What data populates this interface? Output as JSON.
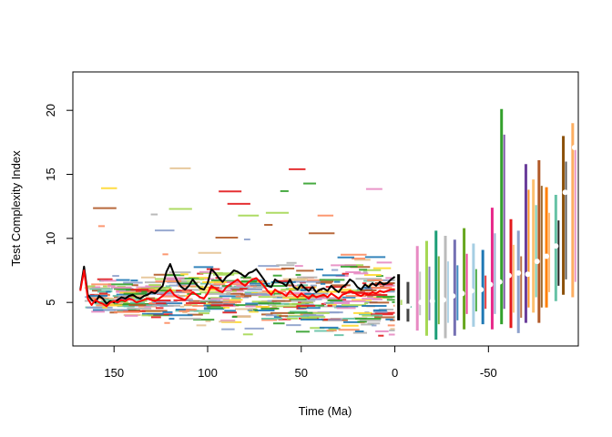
{
  "chart_data": {
    "type": "line",
    "title": "",
    "xlabel": "Time (Ma)",
    "ylabel": "Test Complexity Index",
    "xlim": [
      172,
      -98
    ],
    "ylim": [
      1.6,
      23
    ],
    "x_ticks": [
      150,
      100,
      50,
      0,
      -50
    ],
    "x_tick_labels": [
      "150",
      "100",
      "50",
      "0",
      "-50"
    ],
    "y_ticks": [
      5,
      10,
      15,
      20
    ],
    "y_tick_labels": [
      "5",
      "10",
      "15",
      "20"
    ],
    "grid": false,
    "legend": "none",
    "series": [
      {
        "style": "line",
        "color": "#000000",
        "x": [
          168,
          166,
          164,
          162,
          160,
          158,
          156,
          154,
          152,
          150,
          148,
          146,
          144,
          142,
          140,
          138,
          136,
          134,
          132,
          130,
          128,
          126,
          124,
          122,
          120,
          118,
          116,
          114,
          112,
          110,
          108,
          106,
          104,
          102,
          100,
          98,
          96,
          94,
          92,
          90,
          88,
          86,
          84,
          82,
          80,
          78,
          76,
          74,
          72,
          70,
          68,
          66,
          64,
          62,
          60,
          58,
          56,
          54,
          52,
          50,
          48,
          46,
          44,
          42,
          40,
          38,
          36,
          34,
          32,
          30,
          28,
          26,
          24,
          22,
          20,
          18,
          16,
          14,
          12,
          10,
          8,
          6,
          4,
          2,
          0
        ],
        "y": [
          6.0,
          7.8,
          5.6,
          5.2,
          5.0,
          5.5,
          5.3,
          4.9,
          5.1,
          5.0,
          5.2,
          5.4,
          5.3,
          5.5,
          5.6,
          5.4,
          5.3,
          5.5,
          5.6,
          5.8,
          5.7,
          6.0,
          6.3,
          7.4,
          8.0,
          7.2,
          6.6,
          6.2,
          6.0,
          6.3,
          6.8,
          6.4,
          6.1,
          6.0,
          6.5,
          7.6,
          7.3,
          6.9,
          6.6,
          7.0,
          7.2,
          7.5,
          7.4,
          7.2,
          7.0,
          7.3,
          7.4,
          7.6,
          7.2,
          6.8,
          6.3,
          6.2,
          6.8,
          6.6,
          6.5,
          6.3,
          6.8,
          6.2,
          6.0,
          6.4,
          6.1,
          5.9,
          6.2,
          5.8,
          6.0,
          6.1,
          5.9,
          6.3,
          6.0,
          5.8,
          6.2,
          6.4,
          6.8,
          6.6,
          6.2,
          6.0,
          6.4,
          6.2,
          6.5,
          6.3,
          6.6,
          6.4,
          6.5,
          6.8,
          7.0
        ]
      },
      {
        "style": "line",
        "color": "#ff0000",
        "x": [
          168,
          166,
          164,
          162,
          160,
          158,
          156,
          154,
          152,
          150,
          148,
          146,
          144,
          142,
          140,
          138,
          136,
          134,
          132,
          130,
          128,
          126,
          124,
          122,
          120,
          118,
          116,
          114,
          112,
          110,
          108,
          106,
          104,
          102,
          100,
          98,
          96,
          94,
          92,
          90,
          88,
          86,
          84,
          82,
          80,
          78,
          76,
          74,
          72,
          70,
          68,
          66,
          64,
          62,
          60,
          58,
          56,
          54,
          52,
          50,
          48,
          46,
          44,
          42,
          40,
          38,
          36,
          34,
          32,
          30,
          28,
          26,
          24,
          22,
          20,
          18,
          16,
          14,
          12,
          10,
          8,
          6,
          4,
          2,
          0
        ],
        "y": [
          5.9,
          7.5,
          5.3,
          4.8,
          5.2,
          5.0,
          4.9,
          4.7,
          5.0,
          5.1,
          5.0,
          5.2,
          5.1,
          5.3,
          5.2,
          5.0,
          5.1,
          5.2,
          5.3,
          5.2,
          5.1,
          5.3,
          5.5,
          5.8,
          6.0,
          5.6,
          5.4,
          5.3,
          5.2,
          5.5,
          5.8,
          5.6,
          5.4,
          5.3,
          5.7,
          6.3,
          6.1,
          5.9,
          5.8,
          6.2,
          6.4,
          6.6,
          6.8,
          6.5,
          6.3,
          6.6,
          6.8,
          6.9,
          6.6,
          6.3,
          5.9,
          5.6,
          6.0,
          5.8,
          5.7,
          5.5,
          5.9,
          5.6,
          5.4,
          5.7,
          5.5,
          5.3,
          5.6,
          5.4,
          5.5,
          5.6,
          5.4,
          5.7,
          5.5,
          5.3,
          5.6,
          5.7,
          5.9,
          5.8,
          5.6,
          5.5,
          5.7,
          5.6,
          5.8,
          5.7,
          5.9,
          5.8,
          5.9,
          6.0,
          6.0
        ]
      },
      {
        "style": "points",
        "color": "#ffffff",
        "x": [
          -7,
          -14,
          -20,
          -26,
          -31,
          -36,
          -41,
          -46,
          -51,
          -56,
          -61,
          -66,
          -71,
          -76,
          -81,
          -86,
          -91,
          -96
        ],
        "y": [
          4.7,
          5.0,
          5.1,
          5.2,
          5.5,
          5.7,
          5.9,
          6.0,
          6.4,
          6.6,
          7.1,
          7.3,
          7.2,
          8.2,
          8.6,
          9.4,
          13.6,
          17.1
        ]
      },
      {
        "style": "range-bars",
        "x": [
          -2,
          -7,
          -12,
          -17,
          -22,
          -27,
          -32,
          -37,
          -42,
          -47,
          -52,
          -57,
          -62,
          -66,
          -70,
          -74,
          -77,
          -81,
          -86,
          -90,
          -95
        ],
        "low": [
          3.6,
          3.5,
          2.8,
          2.4,
          2.1,
          2.2,
          2.4,
          2.9,
          3.1,
          3.3,
          2.9,
          3.3,
          3.0,
          2.6,
          3.4,
          4.2,
          3.4,
          4.6,
          5.1,
          5.6,
          5.4
        ],
        "high": [
          7.2,
          6.6,
          9.4,
          9.8,
          10.6,
          10.2,
          9.9,
          10.8,
          9.6,
          9.1,
          12.4,
          20.1,
          11.5,
          10.6,
          15.8,
          14.6,
          16.1,
          14.0,
          13.4,
          18.0,
          19.0
        ],
        "colors": [
          "#000000",
          "#444444",
          "#e78ac3",
          "#a6d854",
          "#1b9e77",
          "#bbbbbb",
          "#7570b3",
          "#66a61e",
          "#a6cee3",
          "#1f78b4",
          "#e7298a",
          "#33a02c",
          "#e31a1c",
          "#8da0cb",
          "#6a3d9a",
          "#fdbf6f",
          "#b15928",
          "#ff7f00",
          "#66c2a5",
          "#8c510a",
          "#fdae61"
        ]
      }
    ],
    "palette": [
      "#66c2a5",
      "#fc8d62",
      "#8da0cb",
      "#e78ac3",
      "#a6d854",
      "#ffd92f",
      "#e5c494",
      "#b3b3b3",
      "#b15928",
      "#1f78b4",
      "#33a02c",
      "#e31a1c"
    ]
  }
}
